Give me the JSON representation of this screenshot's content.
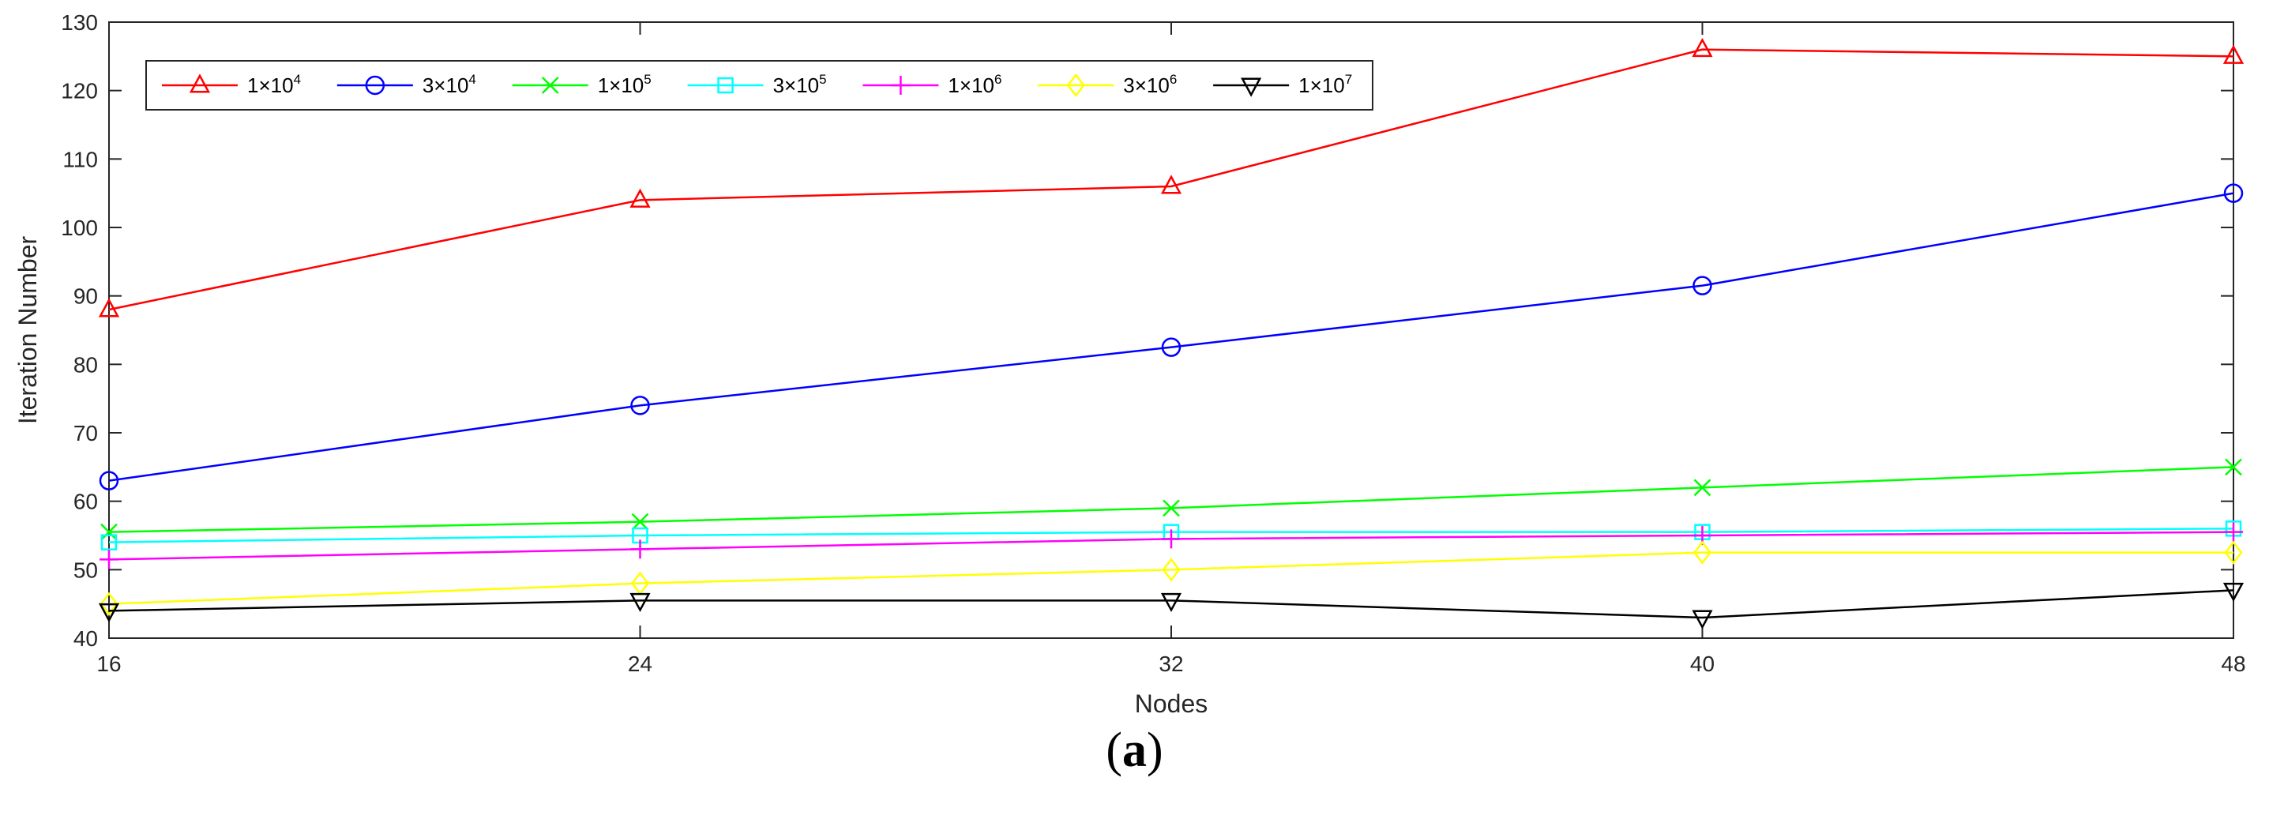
{
  "chart_data": {
    "type": "line",
    "title": "",
    "xlabel": "Nodes",
    "ylabel": "Iteration Number",
    "x": [
      16,
      24,
      32,
      40,
      48
    ],
    "xlim": [
      16,
      48
    ],
    "ylim": [
      40,
      130
    ],
    "xticks": [
      16,
      24,
      32,
      40,
      48
    ],
    "yticks": [
      40,
      50,
      60,
      70,
      80,
      90,
      100,
      110,
      120,
      130
    ],
    "grid": false,
    "legend_position": "top-left",
    "legend_orientation": "horizontal",
    "series": [
      {
        "name": "1×10^4",
        "base": "1×10",
        "exp": "4",
        "color": "#ff0000",
        "marker": "triangle-up",
        "values": [
          88,
          104,
          106,
          126,
          125
        ]
      },
      {
        "name": "3×10^4",
        "base": "3×10",
        "exp": "4",
        "color": "#0000ff",
        "marker": "circle",
        "values": [
          63,
          74,
          82.5,
          91.5,
          105
        ]
      },
      {
        "name": "1×10^5",
        "base": "1×10",
        "exp": "5",
        "color": "#00ff00",
        "marker": "x",
        "values": [
          55.5,
          57,
          59,
          62,
          65
        ]
      },
      {
        "name": "3×10^5",
        "base": "3×10",
        "exp": "5",
        "color": "#00ffff",
        "marker": "square",
        "values": [
          54,
          55,
          55.5,
          55.5,
          56
        ]
      },
      {
        "name": "1×10^6",
        "base": "1×10",
        "exp": "6",
        "color": "#ff00ff",
        "marker": "plus",
        "values": [
          51.5,
          53,
          54.5,
          55,
          55.5
        ]
      },
      {
        "name": "3×10^6",
        "base": "3×10",
        "exp": "6",
        "color": "#ffff00",
        "marker": "diamond",
        "values": [
          45,
          48,
          50,
          52.5,
          52.5
        ]
      },
      {
        "name": "1×10^7",
        "base": "1×10",
        "exp": "7",
        "color": "#000000",
        "marker": "triangle-down",
        "values": [
          44,
          45.5,
          45.5,
          43,
          47
        ]
      }
    ]
  },
  "caption": {
    "open": "(",
    "letter": "a",
    "close": ")"
  }
}
